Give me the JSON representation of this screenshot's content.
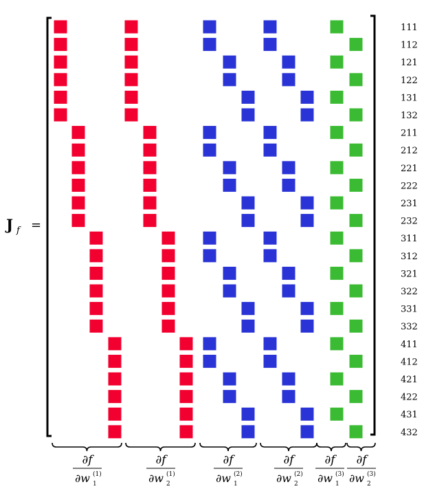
{
  "lhs": {
    "symbol": "J",
    "subscript": "f",
    "equals": "="
  },
  "row_labels": [
    "111",
    "112",
    "121",
    "122",
    "131",
    "132",
    "211",
    "212",
    "221",
    "222",
    "231",
    "232",
    "311",
    "312",
    "321",
    "322",
    "331",
    "332",
    "411",
    "412",
    "421",
    "422",
    "431",
    "432"
  ],
  "column_groups": [
    {
      "numerator": "∂f",
      "denominator_symbol": "∂w",
      "denominator_sub": "1",
      "denominator_sup": "(1)"
    },
    {
      "numerator": "∂f",
      "denominator_symbol": "∂w",
      "denominator_sub": "2",
      "denominator_sup": "(1)"
    },
    {
      "numerator": "∂f",
      "denominator_symbol": "∂w",
      "denominator_sub": "1",
      "denominator_sup": "(2)"
    },
    {
      "numerator": "∂f",
      "denominator_symbol": "∂w",
      "denominator_sub": "2",
      "denominator_sup": "(2)"
    },
    {
      "numerator": "∂f",
      "denominator_symbol": "∂w",
      "denominator_sub": "1",
      "denominator_sup": "(3)"
    },
    {
      "numerator": "∂f",
      "denominator_symbol": "∂w",
      "denominator_sub": "2",
      "denominator_sup": "(3)"
    }
  ],
  "colors": {
    "layer1": "#f2002f",
    "layer2": "#2a34d6",
    "layer3": "#3bbb33",
    "bracket": "#000000"
  }
}
